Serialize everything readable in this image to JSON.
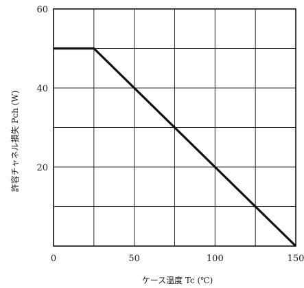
{
  "chart_data": {
    "type": "line",
    "title": "",
    "xlabel": "ケース温度 Tc (℃)",
    "ylabel": "許容チャネル損失 Pch (W)",
    "xlim": [
      0,
      150
    ],
    "ylim": [
      0,
      60
    ],
    "x_ticks": [
      0,
      50,
      100,
      150
    ],
    "y_ticks": [
      20,
      40,
      60
    ],
    "x_tick_labels": [
      "0",
      "50",
      "100",
      "150"
    ],
    "y_tick_labels": [
      "20",
      "40",
      "60"
    ],
    "x_grid": [
      0,
      25,
      50,
      75,
      100,
      125,
      150
    ],
    "y_grid": [
      0,
      10,
      20,
      30,
      40,
      50,
      60
    ],
    "grid": true,
    "series": [
      {
        "x": [
          0,
          25,
          150
        ],
        "y": [
          50,
          50,
          0
        ]
      }
    ],
    "colors": {
      "line": "#111111",
      "grid": "#2a2a2a",
      "text": "#1a1a1a"
    }
  }
}
